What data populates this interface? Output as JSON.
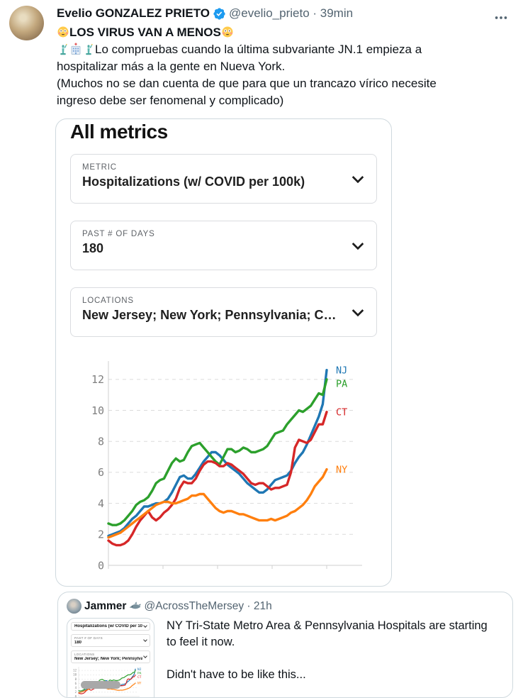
{
  "tweet": {
    "author": "Evelio GONZALEZ PRIETO",
    "handle_time": "@evelio_prieto · 39min",
    "line1": "LOS VIRUS VAN A MENOS",
    "line2": "Lo compruebas cuando la última subvariante JN.1 empieza a hospitalizar más a la gente en Nueva York.",
    "line3": "(Muchos no se dan cuenta de que para que un trancazo vírico necesite ingreso debe ser fenomenal y complicado)"
  },
  "icons": {
    "flushed_face": "😳",
    "statue_of_liberty": "🗽",
    "hospital": "🏥",
    "shark": "🦈",
    "verified_badge_color": "#1d9bf0",
    "more_button": "ellipsis"
  },
  "dashboard": {
    "title": "All metrics",
    "fields": [
      {
        "label": "METRIC",
        "value": "Hospitalizations (w/ COVID per 100k)"
      },
      {
        "label": "PAST # OF DAYS",
        "value": "180"
      },
      {
        "label": "LOCATIONS",
        "value": "New Jersey; New York; Pennsylvania; C…"
      }
    ]
  },
  "chart_data": {
    "type": "line",
    "title": "",
    "xlabel": "",
    "ylabel": "",
    "x_span_days": 180,
    "xticks_labeled": false,
    "ylim": [
      0,
      13
    ],
    "yticks": [
      0,
      2,
      4,
      6,
      8,
      10,
      12
    ],
    "grid": "horizontal-dashed",
    "legend_position": "right-end-labels",
    "series": [
      {
        "name": "NJ",
        "color": "#1f77b4",
        "values": [
          1.9,
          2.0,
          2.1,
          2.2,
          2.4,
          2.7,
          3.0,
          3.2,
          3.5,
          3.8,
          3.8,
          3.9,
          4.0,
          4.0,
          4.1,
          4.3,
          4.7,
          5.2,
          5.7,
          5.8,
          5.6,
          5.6,
          5.9,
          6.3,
          6.7,
          7.0,
          7.3,
          7.3,
          7.1,
          6.8,
          6.5,
          6.3,
          6.1,
          5.9,
          5.6,
          5.3,
          5.1,
          4.9,
          4.7,
          4.7,
          4.9,
          5.2,
          5.5,
          5.6,
          5.7,
          5.8,
          6.1,
          6.6,
          7.0,
          7.3,
          7.8,
          8.4,
          9.0,
          9.6,
          10.4,
          12.6
        ]
      },
      {
        "name": "PA",
        "color": "#2ca02c",
        "values": [
          2.7,
          2.6,
          2.6,
          2.7,
          2.9,
          3.2,
          3.5,
          3.9,
          4.1,
          4.2,
          4.4,
          4.8,
          5.3,
          5.5,
          5.6,
          6.1,
          6.6,
          6.9,
          6.7,
          6.8,
          7.3,
          7.7,
          7.8,
          7.9,
          7.6,
          7.3,
          7.0,
          6.7,
          6.5,
          7.0,
          7.5,
          7.5,
          7.3,
          7.4,
          7.6,
          7.5,
          7.3,
          7.3,
          7.4,
          7.5,
          7.7,
          8.1,
          8.5,
          8.6,
          8.7,
          9.1,
          9.4,
          9.7,
          10.0,
          9.9,
          10.1,
          10.3,
          10.7,
          11.1,
          11.0,
          12.0
        ]
      },
      {
        "name": "CT",
        "color": "#d62728",
        "values": [
          1.6,
          1.4,
          1.3,
          1.3,
          1.4,
          1.6,
          2.0,
          2.5,
          2.9,
          3.2,
          3.5,
          3.1,
          2.9,
          3.1,
          3.4,
          3.6,
          3.9,
          4.3,
          5.0,
          5.4,
          5.3,
          5.3,
          5.6,
          6.1,
          6.5,
          6.7,
          6.7,
          6.6,
          6.4,
          6.4,
          6.6,
          6.5,
          6.3,
          6.1,
          5.9,
          5.6,
          5.3,
          5.2,
          5.3,
          5.3,
          5.1,
          4.9,
          5.0,
          5.0,
          5.1,
          5.2,
          6.0,
          7.6,
          8.1,
          8.0,
          7.9,
          8.1,
          8.6,
          9.1,
          9.1,
          9.9
        ]
      },
      {
        "name": "NY",
        "color": "#ff7f0e",
        "values": [
          1.8,
          1.9,
          2.0,
          2.1,
          2.3,
          2.5,
          2.7,
          2.9,
          3.1,
          3.3,
          3.5,
          3.7,
          3.9,
          4.0,
          4.1,
          4.1,
          4.0,
          4.0,
          4.1,
          4.2,
          4.3,
          4.5,
          4.5,
          4.6,
          4.6,
          4.3,
          4.0,
          3.7,
          3.5,
          3.4,
          3.5,
          3.5,
          3.4,
          3.3,
          3.3,
          3.2,
          3.1,
          3.0,
          2.9,
          2.9,
          2.9,
          3.0,
          2.9,
          3.0,
          3.1,
          3.2,
          3.4,
          3.5,
          3.7,
          3.9,
          4.2,
          4.6,
          5.1,
          5.4,
          5.7,
          6.2
        ]
      }
    ]
  },
  "quote": {
    "author": "Jammer",
    "handle_time": "@AcrossTheMersey · 21h",
    "text1": "NY Tri-State Metro Area & Pennsylvania Hospitals are starting to feel it now.",
    "text2": "Didn't have to be like this...",
    "thumb": {
      "metric": "Hospitalizations (w/ COVID per 100k)",
      "days_label": "PAST # OF DAYS",
      "days": "180",
      "locations_label": "LOCATIONS",
      "locations": "New Jersey; New York; Pennsylvania; C..."
    }
  }
}
